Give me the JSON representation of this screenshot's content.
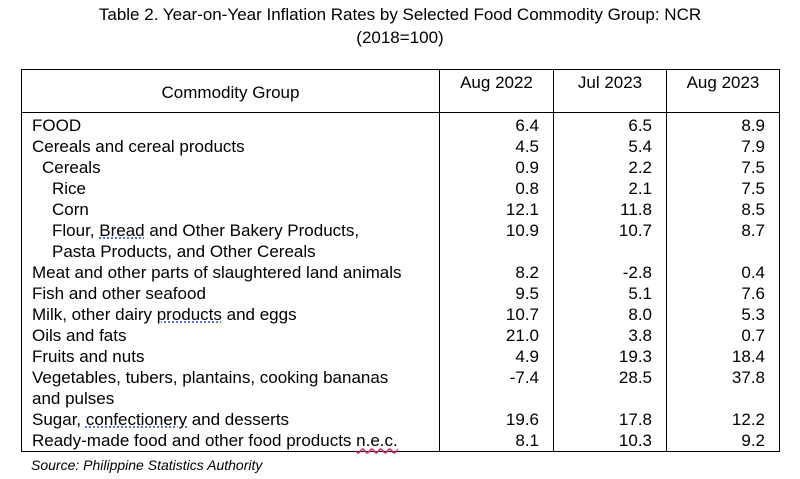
{
  "title_line1": "Table 2. Year-on-Year Inflation Rates by Selected Food Commodity Group: NCR",
  "title_line2": "(2018=100)",
  "headers": [
    "Commodity Group",
    "Aug 2022",
    "Jul 2023",
    "Aug 2023"
  ],
  "rows": [
    {
      "name": "FOOD",
      "aug2022": "6.4",
      "jul2023": "6.5",
      "aug2023": "8.9"
    },
    {
      "name": "Cereals and cereal products",
      "aug2022": "4.5",
      "jul2023": "5.4",
      "aug2023": "7.9"
    },
    {
      "name": "Cereals",
      "aug2022": "0.9",
      "jul2023": "2.2",
      "aug2023": "7.5"
    },
    {
      "name": "Rice",
      "aug2022": "0.8",
      "jul2023": "2.1",
      "aug2023": "7.5"
    },
    {
      "name": "Corn",
      "aug2022": "12.1",
      "jul2023": "11.8",
      "aug2023": "8.5"
    },
    {
      "name_pre": "Flour, ",
      "name_mark": "Bread",
      "name_post": " and Other Bakery Products,",
      "name_line2": "Pasta Products,  and Other Cereals",
      "aug2022": "10.9",
      "jul2023": "10.7",
      "aug2023": "8.7"
    },
    {
      "name": "Meat and other parts of slaughtered land animals",
      "aug2022": "8.2",
      "jul2023": "-2.8",
      "aug2023": "0.4"
    },
    {
      "name": "Fish and other seafood",
      "aug2022": "9.5",
      "jul2023": "5.1",
      "aug2023": "7.6"
    },
    {
      "name_pre": "Milk, other dairy ",
      "name_mark": "products",
      "name_post": " and eggs",
      "aug2022": "10.7",
      "jul2023": "8.0",
      "aug2023": "5.3"
    },
    {
      "name": "Oils and fats",
      "aug2022": "21.0",
      "jul2023": "3.8",
      "aug2023": "0.7"
    },
    {
      "name": "Fruits and nuts",
      "aug2022": "4.9",
      "jul2023": "19.3",
      "aug2023": "18.4"
    },
    {
      "name": "Vegetables, tubers, plantains, cooking bananas",
      "name_line2": "and pulses",
      "aug2022": "-7.4",
      "jul2023": "28.5",
      "aug2023": "37.8"
    },
    {
      "name_pre": "Sugar, ",
      "name_mark": "confectionery",
      "name_post": " and desserts",
      "aug2022": "19.6",
      "jul2023": "17.8",
      "aug2023": "12.2"
    },
    {
      "name_pre": "Ready-made food and other food products ",
      "name_mark": "n.e.c.",
      "name_post": "",
      "aug2022": "8.1",
      "jul2023": "10.3",
      "aug2023": "9.2"
    }
  ],
  "source": "Source: Philippine Statistics Authority"
}
